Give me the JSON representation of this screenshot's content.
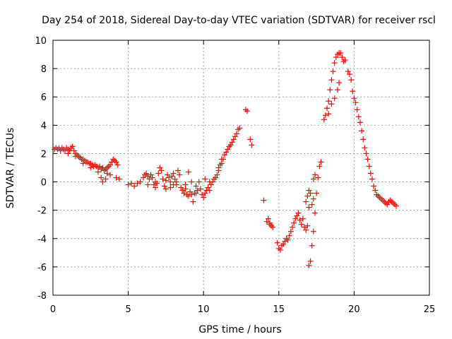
{
  "chart_data": {
    "type": "scatter",
    "title": "Day 254 of 2018, Sidereal Day-to-day VTEC variation (SDTVAR) for receiver rscl",
    "xlabel": "GPS time / hours",
    "ylabel": "SDTVAR / TECUs",
    "xlim": [
      0,
      25
    ],
    "ylim": [
      -8,
      10
    ],
    "xticks": [
      0,
      5,
      10,
      15,
      20,
      25
    ],
    "yticks": [
      -8,
      -6,
      -4,
      -2,
      0,
      2,
      4,
      6,
      8,
      10
    ],
    "xtick_labels": [
      "0",
      "5",
      "10",
      "15",
      "20",
      "25"
    ],
    "ytick_labels": [
      "-8",
      "-6",
      "-4",
      "-2",
      "0",
      "2",
      "4",
      "6",
      "8",
      "10"
    ],
    "grid": true,
    "marker": "+",
    "color": "#ff0000",
    "series": [
      {
        "name": "SDTVAR",
        "points": [
          [
            0.1,
            2.3
          ],
          [
            0.2,
            2.4
          ],
          [
            0.3,
            2.3
          ],
          [
            0.4,
            2.4
          ],
          [
            0.5,
            2.2
          ],
          [
            0.6,
            2.4
          ],
          [
            0.7,
            2.3
          ],
          [
            0.8,
            2.2
          ],
          [
            0.9,
            2.4
          ],
          [
            1.0,
            2.3
          ],
          [
            1.1,
            2.2
          ],
          [
            1.2,
            2.4
          ],
          [
            1.3,
            2.5
          ],
          [
            1.4,
            2.2
          ],
          [
            1.5,
            2.0
          ],
          [
            1.6,
            1.9
          ],
          [
            1.7,
            1.8
          ],
          [
            1.8,
            1.7
          ],
          [
            1.9,
            1.6
          ],
          [
            2.0,
            1.6
          ],
          [
            2.1,
            1.5
          ],
          [
            2.2,
            1.4
          ],
          [
            2.3,
            1.4
          ],
          [
            2.4,
            1.3
          ],
          [
            2.5,
            1.3
          ],
          [
            2.6,
            1.2
          ],
          [
            2.7,
            1.1
          ],
          [
            2.8,
            1.2
          ],
          [
            2.9,
            1.1
          ],
          [
            3.0,
            1.0
          ],
          [
            3.1,
            1.1
          ],
          [
            3.2,
            0.9
          ],
          [
            3.3,
            1.0
          ],
          [
            3.4,
            0.8
          ],
          [
            3.5,
            0.9
          ],
          [
            3.6,
            1.0
          ],
          [
            3.7,
            1.1
          ],
          [
            3.8,
            1.2
          ],
          [
            3.9,
            1.4
          ],
          [
            4.0,
            1.6
          ],
          [
            4.1,
            1.5
          ],
          [
            4.2,
            1.4
          ],
          [
            4.3,
            1.2
          ],
          [
            1.0,
            2.0
          ],
          [
            1.5,
            1.8
          ],
          [
            2.0,
            1.3
          ],
          [
            2.5,
            1.0
          ],
          [
            3.0,
            0.7
          ],
          [
            3.2,
            0.3
          ],
          [
            3.5,
            0.2
          ],
          [
            3.8,
            0.5
          ],
          [
            4.2,
            0.3
          ],
          [
            4.4,
            0.2
          ],
          [
            3.3,
            0.0
          ],
          [
            3.6,
            0.6
          ],
          [
            5.0,
            -0.2
          ],
          [
            5.2,
            -0.1
          ],
          [
            5.4,
            -0.3
          ],
          [
            5.6,
            -0.1
          ],
          [
            5.8,
            0.0
          ],
          [
            6.0,
            0.3
          ],
          [
            6.1,
            0.5
          ],
          [
            6.2,
            0.6
          ],
          [
            6.3,
            0.4
          ],
          [
            6.4,
            0.2
          ],
          [
            6.5,
            0.5
          ],
          [
            6.6,
            0.3
          ],
          [
            6.7,
            -0.2
          ],
          [
            6.8,
            -0.4
          ],
          [
            6.9,
            -0.1
          ],
          [
            7.0,
            0.6
          ],
          [
            7.1,
            1.0
          ],
          [
            7.2,
            0.8
          ],
          [
            7.3,
            0.2
          ],
          [
            7.4,
            -0.3
          ],
          [
            7.5,
            -0.5
          ],
          [
            7.6,
            0.5
          ],
          [
            7.7,
            0.3
          ],
          [
            7.8,
            0.0
          ],
          [
            7.9,
            0.4
          ],
          [
            8.0,
            0.6
          ],
          [
            8.1,
            0.2
          ],
          [
            8.2,
            -0.2
          ],
          [
            8.3,
            0.8
          ],
          [
            8.4,
            0.5
          ],
          [
            8.5,
            -0.4
          ],
          [
            8.6,
            -0.6
          ],
          [
            8.7,
            -0.8
          ],
          [
            8.8,
            -0.5
          ],
          [
            8.9,
            -0.9
          ],
          [
            9.0,
            -1.0
          ],
          [
            9.1,
            -0.7
          ],
          [
            9.2,
            -0.9
          ],
          [
            9.3,
            -1.4
          ],
          [
            9.4,
            -0.8
          ],
          [
            9.5,
            -0.3
          ],
          [
            9.6,
            -0.6
          ],
          [
            9.7,
            0.0
          ],
          [
            9.8,
            -0.5
          ],
          [
            9.9,
            -0.9
          ],
          [
            10.0,
            -1.1
          ],
          [
            10.1,
            -0.8
          ],
          [
            10.2,
            -0.6
          ],
          [
            10.3,
            -0.4
          ],
          [
            10.4,
            -0.6
          ],
          [
            10.5,
            -0.2
          ],
          [
            10.6,
            0.0
          ],
          [
            10.7,
            0.2
          ],
          [
            10.8,
            0.3
          ],
          [
            10.9,
            0.5
          ],
          [
            11.0,
            0.8
          ],
          [
            11.1,
            1.2
          ],
          [
            11.2,
            1.3
          ],
          [
            11.3,
            1.6
          ],
          [
            11.4,
            1.9
          ],
          [
            11.5,
            2.1
          ],
          [
            11.6,
            2.3
          ],
          [
            11.7,
            2.5
          ],
          [
            11.8,
            2.6
          ],
          [
            11.9,
            2.8
          ],
          [
            12.0,
            3.0
          ],
          [
            12.1,
            3.2
          ],
          [
            12.2,
            3.4
          ],
          [
            12.3,
            3.7
          ],
          [
            12.4,
            3.8
          ],
          [
            8.2,
            0.0
          ],
          [
            8.0,
            -0.2
          ],
          [
            7.8,
            -0.4
          ],
          [
            7.5,
            0.1
          ],
          [
            6.8,
            0.0
          ],
          [
            6.3,
            -0.2
          ],
          [
            9.2,
            0.0
          ],
          [
            9.0,
            0.7
          ],
          [
            8.8,
            -0.2
          ],
          [
            10.1,
            0.2
          ],
          [
            10.4,
            0.0
          ],
          [
            9.5,
            -0.8
          ],
          [
            11.0,
            1.0
          ],
          [
            11.2,
            1.6
          ],
          [
            12.8,
            5.1
          ],
          [
            12.9,
            5.0
          ],
          [
            13.1,
            3.0
          ],
          [
            13.2,
            2.6
          ],
          [
            14.0,
            -1.3
          ],
          [
            14.3,
            -2.6
          ],
          [
            14.4,
            -2.9
          ],
          [
            14.5,
            -3.1
          ],
          [
            14.6,
            -3.2
          ],
          [
            14.4,
            -3.0
          ],
          [
            14.2,
            -2.8
          ],
          [
            14.9,
            -4.3
          ],
          [
            15.0,
            -4.7
          ],
          [
            15.1,
            -4.8
          ],
          [
            15.2,
            -4.5
          ],
          [
            15.3,
            -4.4
          ],
          [
            15.4,
            -4.2
          ],
          [
            15.5,
            -4.0
          ],
          [
            15.6,
            -4.1
          ],
          [
            15.7,
            -3.8
          ],
          [
            15.8,
            -3.5
          ],
          [
            15.9,
            -3.2
          ],
          [
            16.0,
            -2.9
          ],
          [
            16.1,
            -2.6
          ],
          [
            16.2,
            -2.4
          ],
          [
            16.3,
            -2.2
          ],
          [
            16.4,
            -2.7
          ],
          [
            16.5,
            -3.0
          ],
          [
            16.6,
            -2.6
          ],
          [
            16.7,
            -3.2
          ],
          [
            16.8,
            -3.4
          ],
          [
            16.9,
            -3.1
          ],
          [
            17.0,
            -5.9
          ],
          [
            17.1,
            -5.6
          ],
          [
            17.2,
            -4.5
          ],
          [
            17.3,
            -3.5
          ],
          [
            17.4,
            -2.2
          ],
          [
            17.5,
            -0.8
          ],
          [
            17.6,
            0.3
          ],
          [
            17.7,
            1.1
          ],
          [
            17.8,
            1.4
          ],
          [
            16.8,
            -1.4
          ],
          [
            16.9,
            -1.0
          ],
          [
            17.0,
            -0.6
          ],
          [
            17.1,
            -0.8
          ],
          [
            17.2,
            -1.6
          ],
          [
            17.3,
            0.2
          ],
          [
            17.4,
            0.5
          ],
          [
            17.0,
            -1.8
          ],
          [
            17.3,
            -1.2
          ],
          [
            18.0,
            4.4
          ],
          [
            18.1,
            4.7
          ],
          [
            18.2,
            5.2
          ],
          [
            18.3,
            5.7
          ],
          [
            18.4,
            6.5
          ],
          [
            18.5,
            7.2
          ],
          [
            18.6,
            7.8
          ],
          [
            18.7,
            8.4
          ],
          [
            18.8,
            8.8
          ],
          [
            18.9,
            9.0
          ],
          [
            19.0,
            9.1
          ],
          [
            19.1,
            9.1
          ],
          [
            19.2,
            8.8
          ],
          [
            19.3,
            8.5
          ],
          [
            19.4,
            8.6
          ],
          [
            18.3,
            4.8
          ],
          [
            18.5,
            5.5
          ],
          [
            18.7,
            5.9
          ],
          [
            18.9,
            6.5
          ],
          [
            19.0,
            7.0
          ],
          [
            19.6,
            7.8
          ],
          [
            19.7,
            7.6
          ],
          [
            19.8,
            7.2
          ],
          [
            19.9,
            6.4
          ],
          [
            20.0,
            5.9
          ],
          [
            20.1,
            5.6
          ],
          [
            20.2,
            5.1
          ],
          [
            20.3,
            4.6
          ],
          [
            20.4,
            4.2
          ],
          [
            20.5,
            3.6
          ],
          [
            20.6,
            3.0
          ],
          [
            20.7,
            2.4
          ],
          [
            20.8,
            2.0
          ],
          [
            20.9,
            1.6
          ],
          [
            21.0,
            1.1
          ],
          [
            21.1,
            0.6
          ],
          [
            21.2,
            0.2
          ],
          [
            21.3,
            -0.3
          ],
          [
            21.4,
            -0.6
          ],
          [
            21.5,
            -0.9
          ],
          [
            21.6,
            -1.0
          ],
          [
            21.7,
            -1.1
          ],
          [
            21.8,
            -1.2
          ],
          [
            21.9,
            -1.3
          ],
          [
            22.0,
            -1.4
          ],
          [
            22.1,
            -1.5
          ],
          [
            22.2,
            -1.6
          ],
          [
            22.3,
            -1.4
          ],
          [
            22.4,
            -1.3
          ],
          [
            22.5,
            -1.4
          ],
          [
            22.6,
            -1.5
          ],
          [
            22.7,
            -1.6
          ],
          [
            22.8,
            -1.7
          ]
        ]
      }
    ]
  }
}
